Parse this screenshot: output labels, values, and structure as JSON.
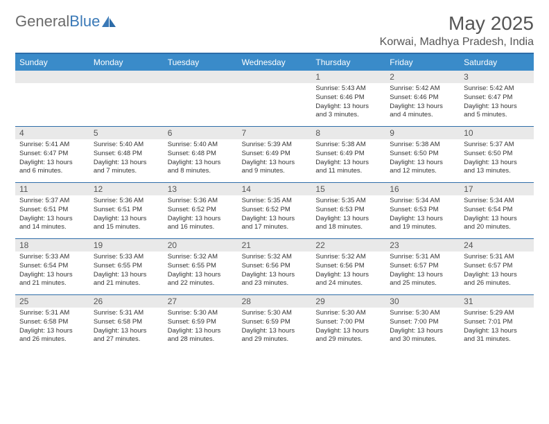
{
  "logo": {
    "text1": "General",
    "text2": "Blue"
  },
  "title": "May 2025",
  "location": "Korwai, Madhya Pradesh, India",
  "colors": {
    "header_bg": "#3a8bc9",
    "border": "#2d6ca8",
    "daynum_bg": "#e9e9e9",
    "text": "#333333",
    "logo_gray": "#6a6a6a",
    "logo_blue": "#3a79b7"
  },
  "day_headers": [
    "Sunday",
    "Monday",
    "Tuesday",
    "Wednesday",
    "Thursday",
    "Friday",
    "Saturday"
  ],
  "weeks": [
    [
      null,
      null,
      null,
      null,
      {
        "d": "1",
        "sr": "5:43 AM",
        "ss": "6:46 PM",
        "dl": "13 hours and 3 minutes."
      },
      {
        "d": "2",
        "sr": "5:42 AM",
        "ss": "6:46 PM",
        "dl": "13 hours and 4 minutes."
      },
      {
        "d": "3",
        "sr": "5:42 AM",
        "ss": "6:47 PM",
        "dl": "13 hours and 5 minutes."
      }
    ],
    [
      {
        "d": "4",
        "sr": "5:41 AM",
        "ss": "6:47 PM",
        "dl": "13 hours and 6 minutes."
      },
      {
        "d": "5",
        "sr": "5:40 AM",
        "ss": "6:48 PM",
        "dl": "13 hours and 7 minutes."
      },
      {
        "d": "6",
        "sr": "5:40 AM",
        "ss": "6:48 PM",
        "dl": "13 hours and 8 minutes."
      },
      {
        "d": "7",
        "sr": "5:39 AM",
        "ss": "6:49 PM",
        "dl": "13 hours and 9 minutes."
      },
      {
        "d": "8",
        "sr": "5:38 AM",
        "ss": "6:49 PM",
        "dl": "13 hours and 11 minutes."
      },
      {
        "d": "9",
        "sr": "5:38 AM",
        "ss": "6:50 PM",
        "dl": "13 hours and 12 minutes."
      },
      {
        "d": "10",
        "sr": "5:37 AM",
        "ss": "6:50 PM",
        "dl": "13 hours and 13 minutes."
      }
    ],
    [
      {
        "d": "11",
        "sr": "5:37 AM",
        "ss": "6:51 PM",
        "dl": "13 hours and 14 minutes."
      },
      {
        "d": "12",
        "sr": "5:36 AM",
        "ss": "6:51 PM",
        "dl": "13 hours and 15 minutes."
      },
      {
        "d": "13",
        "sr": "5:36 AM",
        "ss": "6:52 PM",
        "dl": "13 hours and 16 minutes."
      },
      {
        "d": "14",
        "sr": "5:35 AM",
        "ss": "6:52 PM",
        "dl": "13 hours and 17 minutes."
      },
      {
        "d": "15",
        "sr": "5:35 AM",
        "ss": "6:53 PM",
        "dl": "13 hours and 18 minutes."
      },
      {
        "d": "16",
        "sr": "5:34 AM",
        "ss": "6:53 PM",
        "dl": "13 hours and 19 minutes."
      },
      {
        "d": "17",
        "sr": "5:34 AM",
        "ss": "6:54 PM",
        "dl": "13 hours and 20 minutes."
      }
    ],
    [
      {
        "d": "18",
        "sr": "5:33 AM",
        "ss": "6:54 PM",
        "dl": "13 hours and 21 minutes."
      },
      {
        "d": "19",
        "sr": "5:33 AM",
        "ss": "6:55 PM",
        "dl": "13 hours and 21 minutes."
      },
      {
        "d": "20",
        "sr": "5:32 AM",
        "ss": "6:55 PM",
        "dl": "13 hours and 22 minutes."
      },
      {
        "d": "21",
        "sr": "5:32 AM",
        "ss": "6:56 PM",
        "dl": "13 hours and 23 minutes."
      },
      {
        "d": "22",
        "sr": "5:32 AM",
        "ss": "6:56 PM",
        "dl": "13 hours and 24 minutes."
      },
      {
        "d": "23",
        "sr": "5:31 AM",
        "ss": "6:57 PM",
        "dl": "13 hours and 25 minutes."
      },
      {
        "d": "24",
        "sr": "5:31 AM",
        "ss": "6:57 PM",
        "dl": "13 hours and 26 minutes."
      }
    ],
    [
      {
        "d": "25",
        "sr": "5:31 AM",
        "ss": "6:58 PM",
        "dl": "13 hours and 26 minutes."
      },
      {
        "d": "26",
        "sr": "5:31 AM",
        "ss": "6:58 PM",
        "dl": "13 hours and 27 minutes."
      },
      {
        "d": "27",
        "sr": "5:30 AM",
        "ss": "6:59 PM",
        "dl": "13 hours and 28 minutes."
      },
      {
        "d": "28",
        "sr": "5:30 AM",
        "ss": "6:59 PM",
        "dl": "13 hours and 29 minutes."
      },
      {
        "d": "29",
        "sr": "5:30 AM",
        "ss": "7:00 PM",
        "dl": "13 hours and 29 minutes."
      },
      {
        "d": "30",
        "sr": "5:30 AM",
        "ss": "7:00 PM",
        "dl": "13 hours and 30 minutes."
      },
      {
        "d": "31",
        "sr": "5:29 AM",
        "ss": "7:01 PM",
        "dl": "13 hours and 31 minutes."
      }
    ]
  ],
  "labels": {
    "sunrise": "Sunrise: ",
    "sunset": "Sunset: ",
    "daylight": "Daylight: "
  }
}
